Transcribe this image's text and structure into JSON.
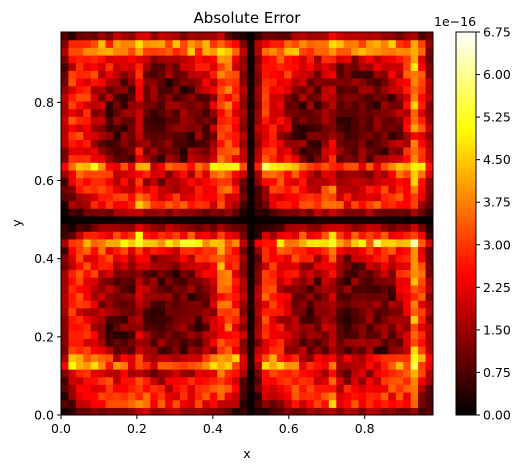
{
  "chart_data": {
    "type": "heatmap",
    "title": "Absolute Error",
    "xlabel": "x",
    "ylabel": "y",
    "xlim": [
      0.0,
      0.98
    ],
    "ylim": [
      0.0,
      0.98
    ],
    "x_ticks": [
      0.0,
      0.2,
      0.4,
      0.6,
      0.8
    ],
    "x_tick_labels": [
      "0.0",
      "0.2",
      "0.4",
      "0.6",
      "0.8"
    ],
    "y_ticks": [
      0.0,
      0.2,
      0.4,
      0.6,
      0.8
    ],
    "y_tick_labels": [
      "0.0",
      "0.2",
      "0.4",
      "0.6",
      "0.8"
    ],
    "colormap": "hot",
    "colorbar": {
      "min": 0.0,
      "max": 6.75,
      "exponent_label": "1e−16",
      "ticks": [
        0.0,
        0.75,
        1.5,
        2.25,
        3.0,
        3.75,
        4.5,
        5.25,
        6.0,
        6.75
      ],
      "tick_labels": [
        "0.00",
        "0.75",
        "1.50",
        "2.25",
        "3.00",
        "3.75",
        "4.50",
        "5.25",
        "6.00",
        "6.75"
      ]
    },
    "grid": {
      "nx": 50,
      "ny": 50,
      "description_pattern": "four-fold symmetric quadrant pattern; low values along x=0.5 and y=0.5 midlines and near center of each quadrant; bright lines near x≈0.22, 0.72 and y≈0.65, 0.23, 0.95",
      "value_range": [
        0.0,
        6.75
      ]
    }
  },
  "colors": {
    "hot_0": "#000000",
    "hot_1": "#ff0000",
    "hot_2": "#ffff00",
    "hot_3": "#ffffff"
  }
}
